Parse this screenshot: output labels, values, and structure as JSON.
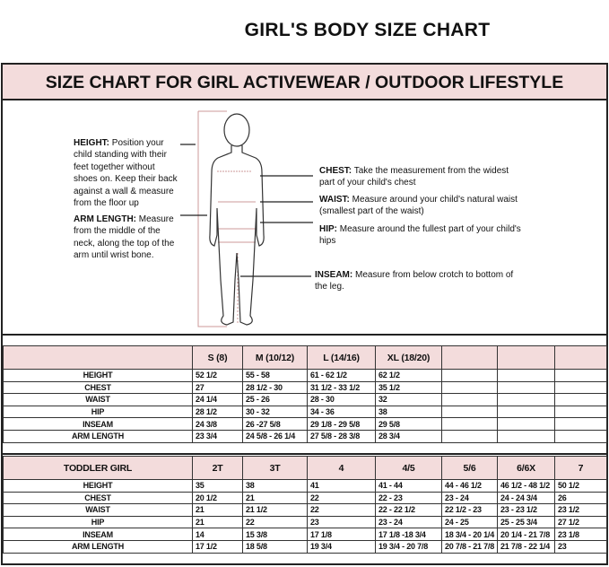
{
  "title": "GIRL'S BODY SIZE CHART",
  "subtitle": "SIZE CHART FOR GIRL ACTIVEWEAR / OUTDOOR LIFESTYLE",
  "notes": {
    "height": {
      "label": "HEIGHT:",
      "text": "Position your child standing with their feet together without shoes on. Keep their back against a wall & measure from the floor up"
    },
    "arm": {
      "label": "ARM LENGTH:",
      "text": "Measure from the middle of the neck, along the top of the arm until wrist bone."
    },
    "chest": {
      "label": "CHEST:",
      "text": "Take the measurement from the widest part of your child's chest"
    },
    "waist": {
      "label": "WAIST:",
      "text": "Measure around your child's natural waist (smallest part of the waist)"
    },
    "hip": {
      "label": "HIP:",
      "text": "Measure around the fullest part of your child's hips"
    },
    "inseam": {
      "label": "INSEAM:",
      "text": "Measure from below crotch to bottom of the leg."
    }
  },
  "girl_table": {
    "headers": [
      "",
      "S (8)",
      "M (10/12)",
      "L (14/16)",
      "XL (18/20)",
      "",
      "",
      ""
    ],
    "rows": [
      [
        "HEIGHT",
        "52 1/2",
        "55 - 58",
        "61 -  62 1/2",
        "62 1/2",
        "",
        "",
        ""
      ],
      [
        "CHEST",
        "27",
        "28 1/2 - 30",
        "31 1/2 - 33 1/2",
        "35 1/2",
        "",
        "",
        ""
      ],
      [
        "WAIST",
        "24 1/4",
        "25  - 26",
        "28 - 30",
        "32",
        "",
        "",
        ""
      ],
      [
        "HIP",
        "28 1/2",
        "30 - 32",
        "34 - 36",
        "38",
        "",
        "",
        ""
      ],
      [
        "INSEAM",
        "24 3/8",
        "26 -27 5/8",
        "29 1/8 - 29 5/8",
        "29 5/8",
        "",
        "",
        ""
      ],
      [
        "ARM LENGTH",
        "23 3/4",
        "24 5/8 - 26 1/4",
        "27 5/8  - 28 3/8",
        "28 3/4",
        "",
        "",
        ""
      ]
    ]
  },
  "toddler_table": {
    "headers": [
      "TODDLER GIRL",
      "2T",
      "3T",
      "4",
      "4/5",
      "5/6",
      "6/6X",
      "7"
    ],
    "rows": [
      [
        "HEIGHT",
        "35",
        "38",
        "41",
        "41 - 44",
        "44  -  46 1/2",
        "46 1/2 - 48 1/2",
        "50 1/2"
      ],
      [
        "CHEST",
        "20 1/2",
        "21",
        "22",
        "22 - 23",
        "23 - 24",
        "24  - 24 3/4",
        "26"
      ],
      [
        "WAIST",
        "21",
        "21 1/2",
        "22",
        "22 - 22 1/2",
        "22 1/2 - 23",
        "23 - 23 1/2",
        "23 1/2"
      ],
      [
        "HIP",
        "21",
        "22",
        "23",
        "23 - 24",
        "24 - 25",
        "25 - 25 3/4",
        "27 1/2"
      ],
      [
        "INSEAM",
        "14",
        "15 3/8",
        "17 1/8",
        "17 1/8 -18 3/4",
        "18 3/4 - 20 1/4",
        "20 1/4 - 21 7/8",
        "23 1/8"
      ],
      [
        "ARM LENGTH",
        "17 1/2",
        "18 5/8",
        "19 3/4",
        "19 3/4 - 20  7/8",
        "20 7/8 - 21 7/8",
        "21 7/8  - 22 1/4",
        "23"
      ]
    ]
  }
}
